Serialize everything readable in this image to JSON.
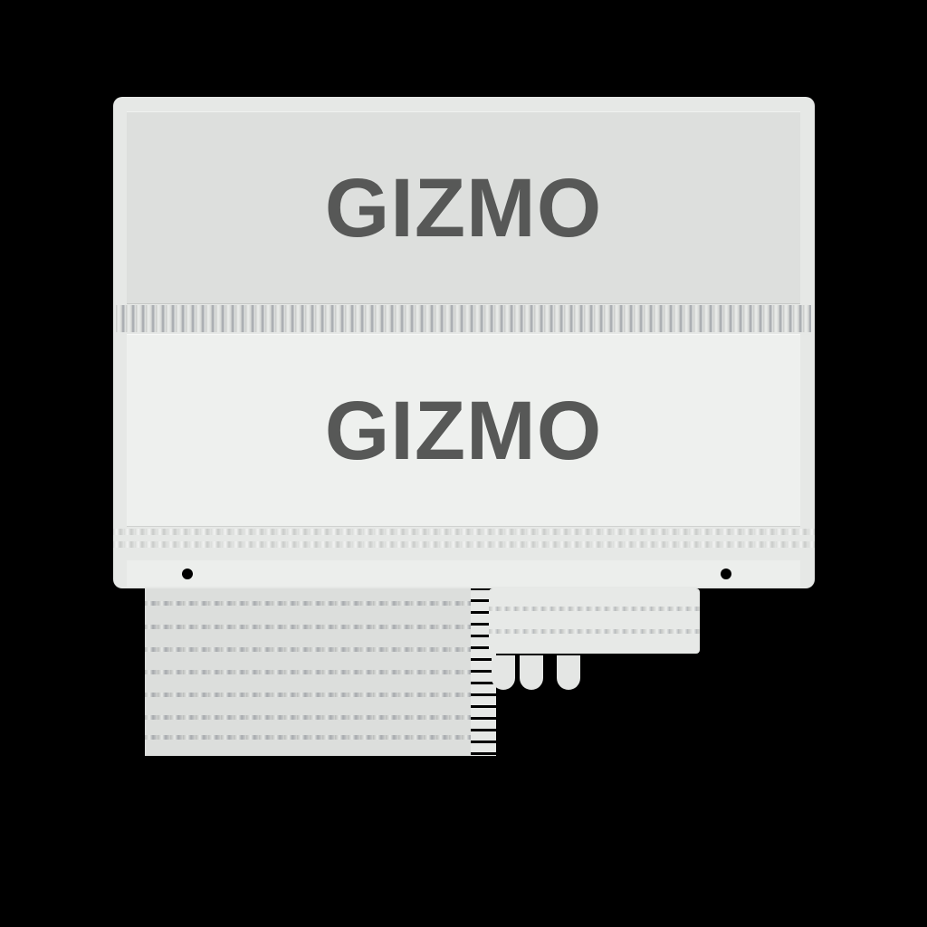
{
  "panels": {
    "top_label": "GIZMO",
    "bottom_label": "GIZMO"
  },
  "colors": {
    "background": "#000000",
    "panel_top": "#dddfdd",
    "panel_bottom": "#eef0ee",
    "text": "#575857"
  }
}
